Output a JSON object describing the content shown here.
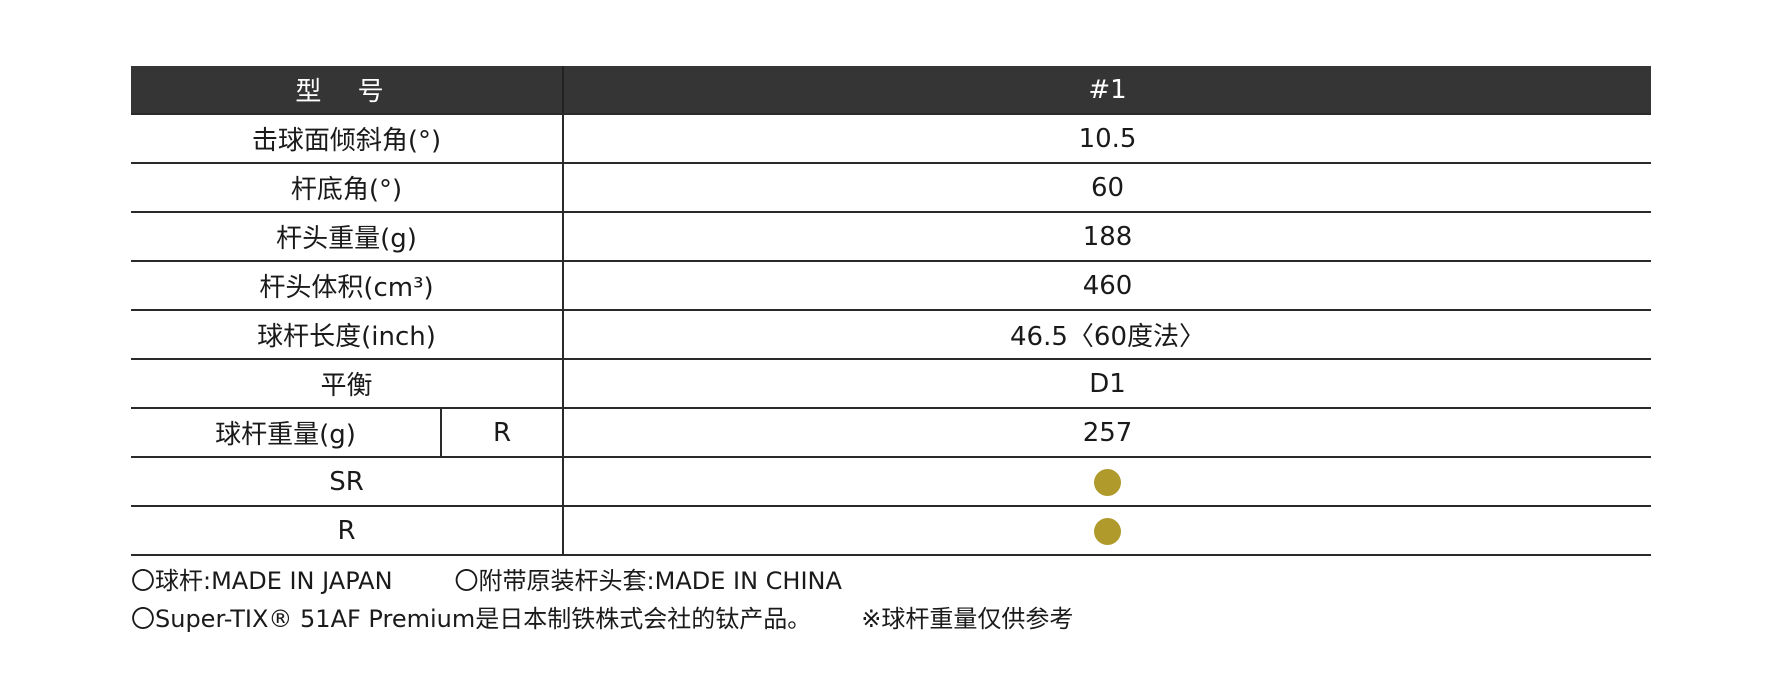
{
  "table": {
    "header": {
      "label": "型 号",
      "value": "#1"
    },
    "rows": [
      {
        "label": "击球面倾斜角(°)",
        "value": "10.5"
      },
      {
        "label": "杆底角(°)",
        "value": "60"
      },
      {
        "label": "杆头重量(g)",
        "value": "188"
      },
      {
        "label": "杆头体积(cm³)",
        "value": "460"
      },
      {
        "label": "球杆长度(inch)",
        "value": "46.5〈60度法〉"
      },
      {
        "label": "平衡",
        "value": "D1"
      }
    ],
    "shaft_weight": {
      "label": "球杆重量(g)",
      "option": "R",
      "value": "257"
    },
    "flex_rows": [
      {
        "label": "SR",
        "available": true
      },
      {
        "label": "R",
        "available": true
      }
    ]
  },
  "notes": {
    "line1_a": "〇球杆:MADE IN JAPAN",
    "line1_b": "〇附带原装杆头套:MADE IN CHINA",
    "line2_a": "〇Super-TIX® 51AF Premium是日本制铁株式会社的钛产品。",
    "line2_b": "※球杆重量仅供参考"
  },
  "colors": {
    "header_bg": "#353535",
    "dot": "#b09a2c",
    "border": "#2a2a2a"
  }
}
